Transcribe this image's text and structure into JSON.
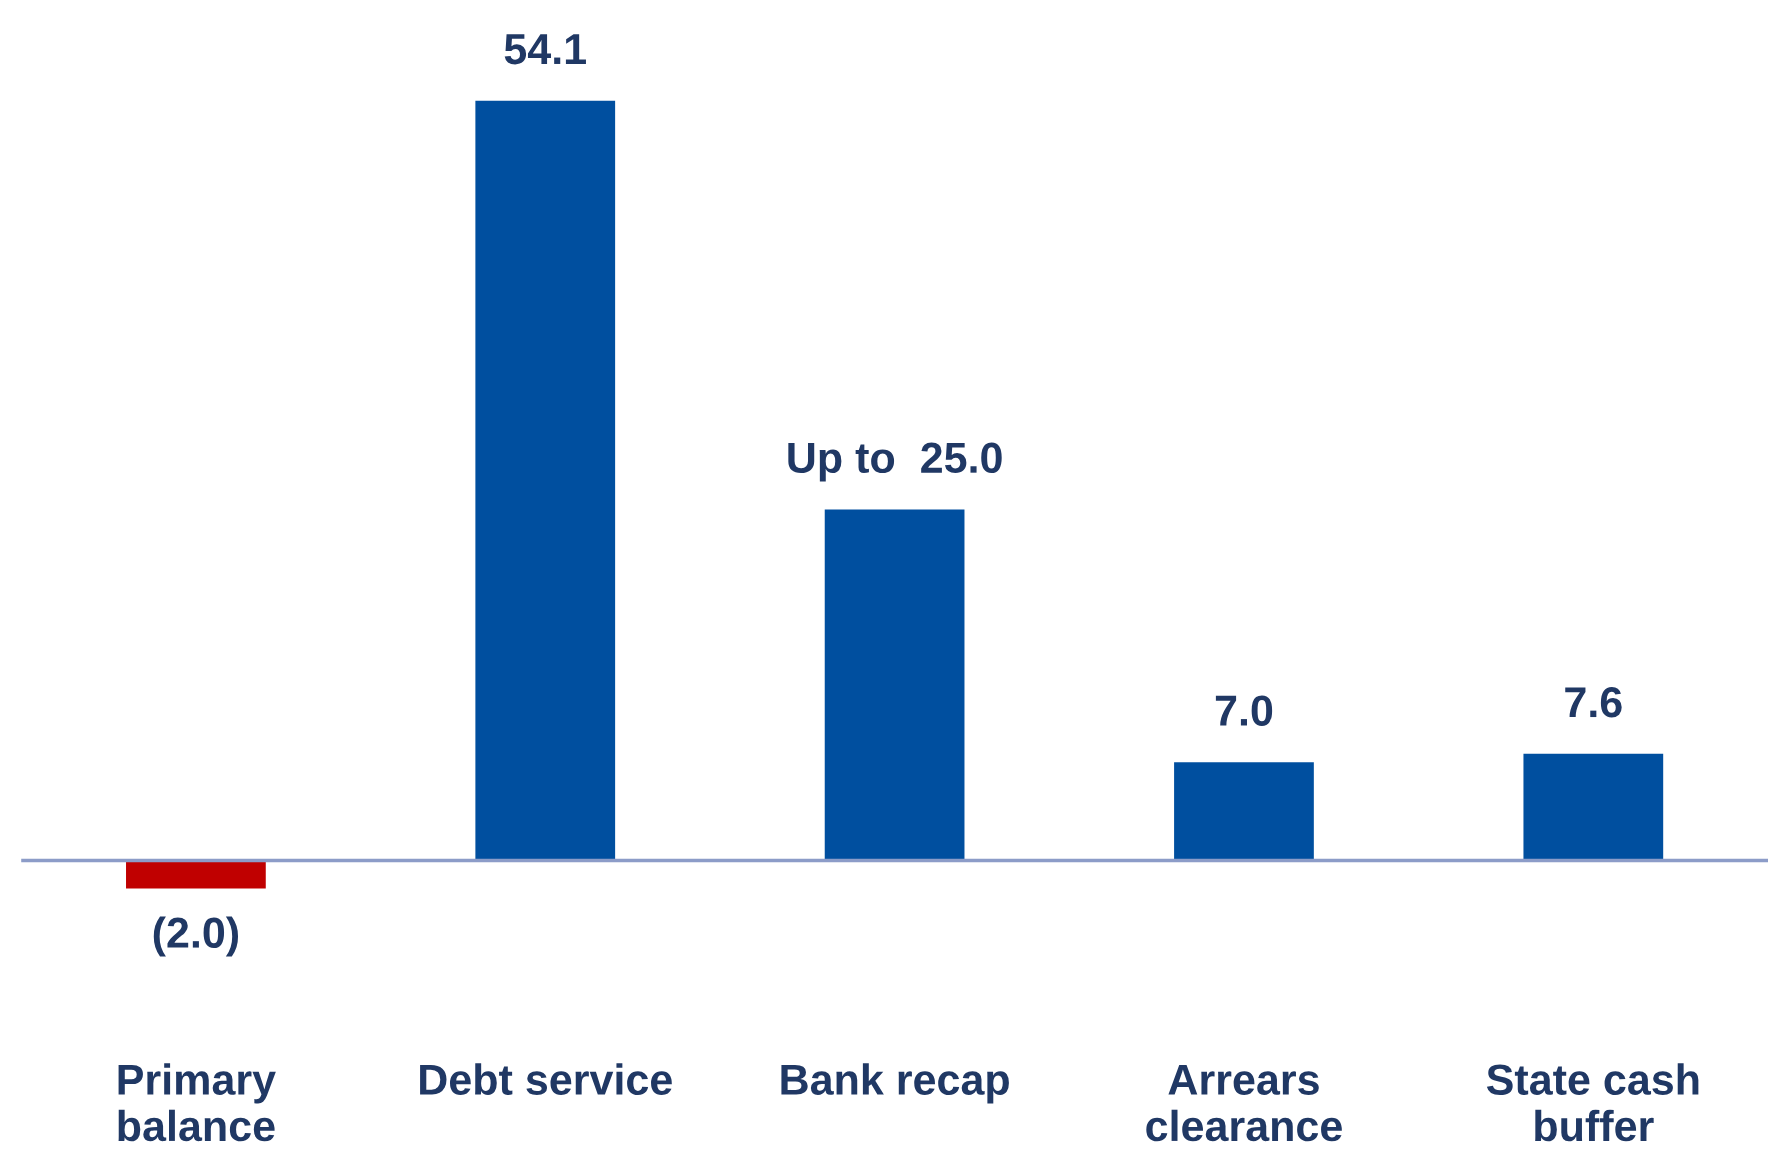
{
  "chart_data": {
    "type": "bar",
    "categories": [
      "Primary\nbalance",
      "Debt service",
      "Bank recap",
      "Arrears\nclearance",
      "State cash\nbuffer"
    ],
    "values": [
      -2.0,
      54.1,
      25.0,
      7.0,
      7.6
    ],
    "colors": [
      "#c00000",
      "#004f9f",
      "#004f9f",
      "#004f9f",
      "#004f9f"
    ],
    "value_labels": [
      "(2.0)",
      "54.1",
      "Up to  25.0",
      "7.0",
      "7.6"
    ],
    "ref_lines": [
      {
        "axis": "y",
        "value": 0,
        "color": "#8c9cc8"
      }
    ],
    "grid": false,
    "legend": false
  }
}
